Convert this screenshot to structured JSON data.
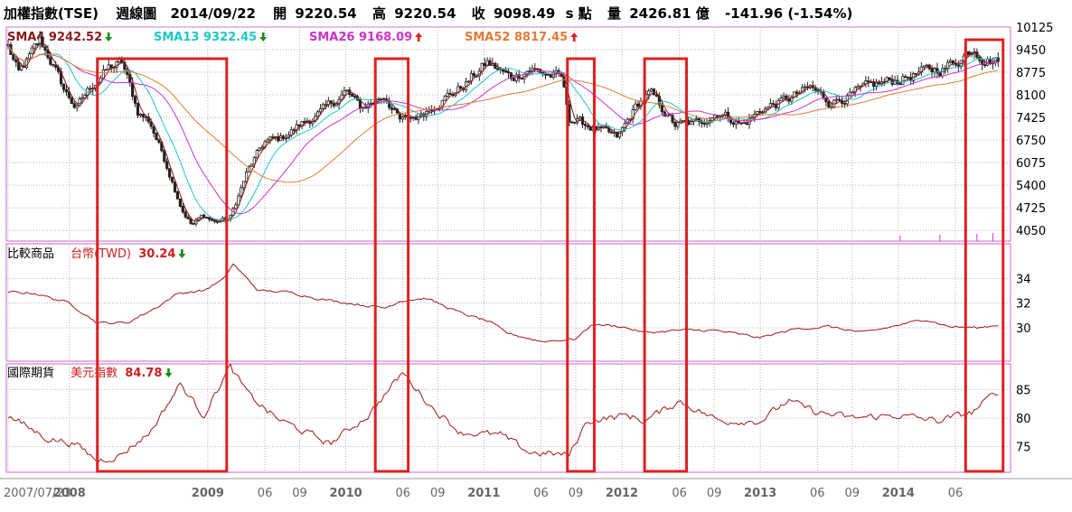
{
  "header": {
    "index_name": "加權指數(TSE)",
    "chart_kind": "週線圖",
    "date": "2014/09/22",
    "open_label": "開",
    "open_value": "9220.54",
    "high_label": "高",
    "high_value": "9220.54",
    "close_label": "收",
    "close_value": "9098.49",
    "unit_suffix": "s 點",
    "volume_label": "量",
    "volume_value": "2426.81 億",
    "change": "-141.96 (-1.54%)"
  },
  "indicators": [
    {
      "text": "SMA4 9242.52",
      "color": "#8b1a1a",
      "arrow": "down"
    },
    {
      "text": "SMA13 9322.45",
      "color": "#1ec8c8",
      "arrow": "down"
    },
    {
      "text": "SMA26 9168.09",
      "color": "#cc33cc",
      "arrow": "up"
    },
    {
      "text": "SMA52 8817.45",
      "color": "#e07b39",
      "arrow": "up"
    }
  ],
  "panel2": {
    "label": "比較商品",
    "series_name": "台幣(TWD)",
    "value": "30.24",
    "arrow": "down"
  },
  "panel3": {
    "label": "國際期貨",
    "series_name": "美元指數",
    "value": "84.78",
    "arrow": "down"
  },
  "colors": {
    "panel_border": "#cc66cc",
    "grid": "#b4b4b4",
    "candle": "#222222",
    "sma4": "#8b1a1a",
    "sma13": "#1ec8c8",
    "sma26": "#cc33cc",
    "sma52": "#e07b39",
    "compare_line": "#a01818",
    "highlight_box": "#e02020",
    "arrow_up": "#e02020",
    "arrow_down": "#1a8a1a",
    "value_red": "#cc2020"
  },
  "chart_data": [
    {
      "type": "candlestick",
      "x_axis": "date",
      "x_range": [
        "2007-07-23",
        "2014-09-22"
      ],
      "y_ticks": [
        4050,
        4725,
        5400,
        6075,
        6750,
        7425,
        8100,
        8775,
        9450,
        10125
      ],
      "ylim": [
        3730,
        10125
      ],
      "grid": true,
      "highlight_ranges": [
        [
          "2008-03-15",
          "2009-02-20"
        ],
        [
          "2010-03-20",
          "2010-06-15"
        ],
        [
          "2011-08-10",
          "2011-10-20"
        ],
        [
          "2012-03-01",
          "2012-06-20"
        ],
        [
          "2014-06-28",
          "2014-10-05"
        ]
      ],
      "close_path": [
        {
          "date": "2007-07-23",
          "close": 9550
        },
        {
          "date": "2007-08-20",
          "close": 8700
        },
        {
          "date": "2007-10-15",
          "close": 9700
        },
        {
          "date": "2007-11-10",
          "close": 9200
        },
        {
          "date": "2007-12-20",
          "close": 8200
        },
        {
          "date": "2008-01-20",
          "close": 7700
        },
        {
          "date": "2008-03-01",
          "close": 8400
        },
        {
          "date": "2008-04-15",
          "close": 8900
        },
        {
          "date": "2008-05-20",
          "close": 9050
        },
        {
          "date": "2008-06-30",
          "close": 7600
        },
        {
          "date": "2008-08-01",
          "close": 7300
        },
        {
          "date": "2008-09-15",
          "close": 6000
        },
        {
          "date": "2008-10-25",
          "close": 4700
        },
        {
          "date": "2008-11-20",
          "close": 4200
        },
        {
          "date": "2008-12-20",
          "close": 4500
        },
        {
          "date": "2009-01-20",
          "close": 4300
        },
        {
          "date": "2009-03-01",
          "close": 4400
        },
        {
          "date": "2009-04-15",
          "close": 5800
        },
        {
          "date": "2009-06-01",
          "close": 6700
        },
        {
          "date": "2009-07-15",
          "close": 6800
        },
        {
          "date": "2009-09-01",
          "close": 7200
        },
        {
          "date": "2009-11-01",
          "close": 7600
        },
        {
          "date": "2010-01-01",
          "close": 8200
        },
        {
          "date": "2010-02-10",
          "close": 7700
        },
        {
          "date": "2010-04-15",
          "close": 8100
        },
        {
          "date": "2010-05-25",
          "close": 7300
        },
        {
          "date": "2010-07-15",
          "close": 7500
        },
        {
          "date": "2010-09-01",
          "close": 7900
        },
        {
          "date": "2010-11-01",
          "close": 8300
        },
        {
          "date": "2011-01-10",
          "close": 9050
        },
        {
          "date": "2011-03-15",
          "close": 8600
        },
        {
          "date": "2011-05-01",
          "close": 8900
        },
        {
          "date": "2011-06-20",
          "close": 8700
        },
        {
          "date": "2011-07-25",
          "close": 8600
        },
        {
          "date": "2011-08-15",
          "close": 7400
        },
        {
          "date": "2011-10-01",
          "close": 7200
        },
        {
          "date": "2011-12-20",
          "close": 6800
        },
        {
          "date": "2012-02-10",
          "close": 7800
        },
        {
          "date": "2012-03-15",
          "close": 8150
        },
        {
          "date": "2012-05-20",
          "close": 7200
        },
        {
          "date": "2012-07-15",
          "close": 7250
        },
        {
          "date": "2012-09-15",
          "close": 7600
        },
        {
          "date": "2012-11-15",
          "close": 7200
        },
        {
          "date": "2013-01-10",
          "close": 7700
        },
        {
          "date": "2013-03-01",
          "close": 7900
        },
        {
          "date": "2013-05-15",
          "close": 8300
        },
        {
          "date": "2013-07-01",
          "close": 7900
        },
        {
          "date": "2013-09-01",
          "close": 8100
        },
        {
          "date": "2013-11-01",
          "close": 8400
        },
        {
          "date": "2014-01-15",
          "close": 8600
        },
        {
          "date": "2014-03-15",
          "close": 8800
        },
        {
          "date": "2014-05-01",
          "close": 8900
        },
        {
          "date": "2014-06-15",
          "close": 9200
        },
        {
          "date": "2014-07-20",
          "close": 9550
        },
        {
          "date": "2014-08-15",
          "close": 9200
        },
        {
          "date": "2014-09-22",
          "close": 9098
        }
      ]
    },
    {
      "type": "line",
      "x_axis": "date",
      "y_ticks": [
        30,
        32,
        34
      ],
      "ylim": [
        27.3,
        36.8
      ],
      "grid": true,
      "points": [
        {
          "date": "2007-07-23",
          "value": 32.9
        },
        {
          "date": "2007-10-01",
          "value": 32.8
        },
        {
          "date": "2008-01-01",
          "value": 32.0
        },
        {
          "date": "2008-03-15",
          "value": 30.4
        },
        {
          "date": "2008-06-01",
          "value": 30.4
        },
        {
          "date": "2008-08-15",
          "value": 31.6
        },
        {
          "date": "2008-10-15",
          "value": 32.8
        },
        {
          "date": "2008-12-20",
          "value": 33.0
        },
        {
          "date": "2009-02-15",
          "value": 34.0
        },
        {
          "date": "2009-03-08",
          "value": 35.2
        },
        {
          "date": "2009-05-15",
          "value": 33.0
        },
        {
          "date": "2009-08-01",
          "value": 32.9
        },
        {
          "date": "2009-11-01",
          "value": 32.3
        },
        {
          "date": "2010-02-01",
          "value": 31.9
        },
        {
          "date": "2010-04-15",
          "value": 31.6
        },
        {
          "date": "2010-05-25",
          "value": 32.2
        },
        {
          "date": "2010-08-01",
          "value": 32.4
        },
        {
          "date": "2010-11-01",
          "value": 31.2
        },
        {
          "date": "2011-01-15",
          "value": 30.5
        },
        {
          "date": "2011-03-01",
          "value": 29.6
        },
        {
          "date": "2011-06-01",
          "value": 28.9
        },
        {
          "date": "2011-09-01",
          "value": 29.1
        },
        {
          "date": "2011-10-15",
          "value": 30.3
        },
        {
          "date": "2012-01-01",
          "value": 30.1
        },
        {
          "date": "2012-03-01",
          "value": 29.6
        },
        {
          "date": "2012-06-01",
          "value": 29.8
        },
        {
          "date": "2012-09-01",
          "value": 29.8
        },
        {
          "date": "2013-01-01",
          "value": 29.2
        },
        {
          "date": "2013-04-01",
          "value": 29.9
        },
        {
          "date": "2013-07-01",
          "value": 30.1
        },
        {
          "date": "2013-10-01",
          "value": 29.6
        },
        {
          "date": "2014-01-15",
          "value": 30.3
        },
        {
          "date": "2014-03-15",
          "value": 30.7
        },
        {
          "date": "2014-05-15",
          "value": 30.1
        },
        {
          "date": "2014-08-01",
          "value": 30.0
        },
        {
          "date": "2014-09-22",
          "value": 30.24
        }
      ]
    },
    {
      "type": "line",
      "x_axis": "date",
      "y_ticks": [
        75,
        80,
        85
      ],
      "ylim": [
        70.5,
        89.5
      ],
      "grid": true,
      "points": [
        {
          "date": "2007-07-23",
          "value": 80.4
        },
        {
          "date": "2007-11-01",
          "value": 76.5
        },
        {
          "date": "2008-01-15",
          "value": 75.5
        },
        {
          "date": "2008-03-15",
          "value": 72.5
        },
        {
          "date": "2008-05-15",
          "value": 73.5
        },
        {
          "date": "2008-08-01",
          "value": 77.5
        },
        {
          "date": "2008-10-20",
          "value": 86.0
        },
        {
          "date": "2008-12-20",
          "value": 80.5
        },
        {
          "date": "2009-03-01",
          "value": 89.0
        },
        {
          "date": "2009-04-20",
          "value": 84.0
        },
        {
          "date": "2009-07-01",
          "value": 80.0
        },
        {
          "date": "2009-11-20",
          "value": 75.5
        },
        {
          "date": "2010-03-01",
          "value": 80.5
        },
        {
          "date": "2010-06-01",
          "value": 88.0
        },
        {
          "date": "2010-08-15",
          "value": 82.0
        },
        {
          "date": "2010-11-01",
          "value": 77.5
        },
        {
          "date": "2011-02-15",
          "value": 77.0
        },
        {
          "date": "2011-05-01",
          "value": 74.0
        },
        {
          "date": "2011-08-15",
          "value": 73.5
        },
        {
          "date": "2011-10-01",
          "value": 79.5
        },
        {
          "date": "2012-01-15",
          "value": 80.5
        },
        {
          "date": "2012-03-01",
          "value": 79.5
        },
        {
          "date": "2012-06-01",
          "value": 83.0
        },
        {
          "date": "2012-09-15",
          "value": 79.5
        },
        {
          "date": "2013-01-01",
          "value": 79.5
        },
        {
          "date": "2013-03-15",
          "value": 83.0
        },
        {
          "date": "2013-06-01",
          "value": 81.0
        },
        {
          "date": "2013-09-01",
          "value": 80.0
        },
        {
          "date": "2014-01-01",
          "value": 80.5
        },
        {
          "date": "2014-04-15",
          "value": 79.5
        },
        {
          "date": "2014-07-15",
          "value": 81.0
        },
        {
          "date": "2014-09-22",
          "value": 84.78
        }
      ]
    }
  ],
  "x_ticks": [
    {
      "date": "2007-07-23",
      "label": "2007/07/23",
      "major": true
    },
    {
      "date": "2008-01-01",
      "label": "2008",
      "major": true
    },
    {
      "date": "2009-01-01",
      "label": "2009",
      "major": true
    },
    {
      "date": "2009-06-01",
      "label": "06",
      "major": false
    },
    {
      "date": "2009-09-01",
      "label": "09",
      "major": false
    },
    {
      "date": "2010-01-01",
      "label": "2010",
      "major": true
    },
    {
      "date": "2010-06-01",
      "label": "06",
      "major": false
    },
    {
      "date": "2010-09-01",
      "label": "09",
      "major": false
    },
    {
      "date": "2011-01-01",
      "label": "2011",
      "major": true
    },
    {
      "date": "2011-06-01",
      "label": "06",
      "major": false
    },
    {
      "date": "2011-09-01",
      "label": "09",
      "major": false
    },
    {
      "date": "2012-01-01",
      "label": "2012",
      "major": true
    },
    {
      "date": "2012-06-01",
      "label": "06",
      "major": false
    },
    {
      "date": "2012-09-01",
      "label": "09",
      "major": false
    },
    {
      "date": "2013-01-01",
      "label": "2013",
      "major": true
    },
    {
      "date": "2013-06-01",
      "label": "06",
      "major": false
    },
    {
      "date": "2013-09-01",
      "label": "09",
      "major": false
    },
    {
      "date": "2014-01-01",
      "label": "2014",
      "major": true
    },
    {
      "date": "2014-06-01",
      "label": "06",
      "major": false
    }
  ]
}
